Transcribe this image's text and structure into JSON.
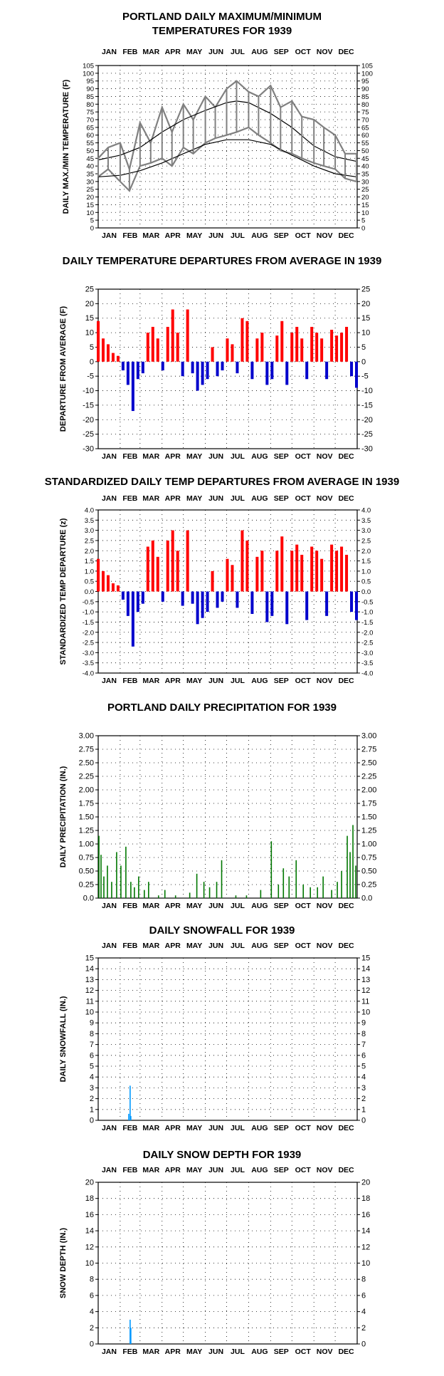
{
  "months": [
    "JAN",
    "FEB",
    "MAR",
    "APR",
    "MAY",
    "JUN",
    "JUL",
    "AUG",
    "SEP",
    "OCT",
    "NOV",
    "DEC"
  ],
  "colors": {
    "maxmin": "#808080",
    "normal": "#000000",
    "warm": "#ff0000",
    "cold": "#0000cc",
    "precip": "#007700",
    "snow": "#0099ff",
    "grid": "#000000"
  },
  "chart_data": [
    {
      "id": "temp",
      "type": "line",
      "title": [
        "PORTLAND DAILY MAXIMUM/MINIMUM",
        "TEMPERATURES FOR 1939"
      ],
      "ylabel": "DAILY MAX./MIN TEMPERATURE (F)",
      "ylim": [
        0,
        105
      ],
      "yticks": [
        "0",
        "5",
        "10",
        "15",
        "20",
        "25",
        "30",
        "35",
        "40",
        "45",
        "50",
        "55",
        "60",
        "65",
        "70",
        "75",
        "80",
        "85",
        "90",
        "95",
        "100",
        "105"
      ],
      "months_top": true,
      "months_bottom": true,
      "series": [
        {
          "role": "max_daily",
          "x": [
            1,
            15,
            32,
            45,
            60,
            75,
            91,
            105,
            121,
            135,
            152,
            166,
            182,
            196,
            213,
            227,
            244,
            258,
            274,
            288,
            305,
            319,
            335,
            349,
            365
          ],
          "y": [
            45,
            52,
            55,
            38,
            68,
            55,
            78,
            62,
            80,
            70,
            85,
            78,
            90,
            95,
            88,
            85,
            92,
            78,
            82,
            72,
            70,
            65,
            60,
            48,
            48
          ]
        },
        {
          "role": "min_daily",
          "x": [
            1,
            15,
            32,
            45,
            60,
            75,
            91,
            105,
            121,
            135,
            152,
            166,
            182,
            196,
            213,
            227,
            244,
            258,
            274,
            288,
            305,
            319,
            335,
            349,
            365
          ],
          "y": [
            33,
            38,
            30,
            24,
            40,
            42,
            45,
            40,
            52,
            48,
            55,
            58,
            60,
            62,
            65,
            60,
            55,
            50,
            48,
            45,
            42,
            40,
            38,
            32,
            30
          ]
        },
        {
          "role": "normal_max",
          "x": [
            1,
            32,
            60,
            91,
            121,
            152,
            182,
            196,
            213,
            244,
            274,
            305,
            335,
            365
          ],
          "y": [
            44,
            47,
            52,
            62,
            70,
            76,
            81,
            82,
            81,
            74,
            65,
            53,
            46,
            43
          ]
        },
        {
          "role": "normal_min",
          "x": [
            1,
            32,
            60,
            91,
            121,
            152,
            182,
            196,
            213,
            244,
            274,
            305,
            335,
            365
          ],
          "y": [
            33,
            34,
            37,
            42,
            48,
            54,
            57,
            57,
            57,
            54,
            47,
            40,
            35,
            33
          ]
        }
      ]
    },
    {
      "id": "dep",
      "type": "bar",
      "title": [
        "DAILY TEMPERATURE DEPARTURES FROM AVERAGE IN 1939"
      ],
      "ylabel": "DEPARTURE FROM AVERAGE (F)",
      "ylim": [
        -30,
        25
      ],
      "yticks": [
        "-30",
        "-25",
        "-20",
        "-15",
        "-10",
        "-5",
        "0",
        "5",
        "10",
        "15",
        "20",
        "25"
      ],
      "months_top": false,
      "months_bottom": true,
      "series": [
        {
          "role": "departure",
          "x": [
            1,
            8,
            15,
            22,
            29,
            36,
            43,
            50,
            57,
            64,
            71,
            78,
            85,
            92,
            99,
            106,
            113,
            120,
            127,
            134,
            141,
            148,
            155,
            162,
            169,
            176,
            183,
            190,
            197,
            204,
            211,
            218,
            225,
            232,
            239,
            246,
            253,
            260,
            267,
            274,
            281,
            288,
            295,
            302,
            309,
            316,
            323,
            330,
            337,
            344,
            351,
            358,
            365
          ],
          "y": [
            14,
            8,
            6,
            3,
            2,
            -3,
            -8,
            -17,
            -6,
            -4,
            10,
            12,
            8,
            -3,
            12,
            18,
            10,
            -5,
            18,
            -4,
            -10,
            -8,
            -6,
            5,
            -5,
            -3,
            8,
            6,
            -4,
            15,
            14,
            -6,
            8,
            10,
            -8,
            -6,
            9,
            14,
            -8,
            10,
            12,
            8,
            -6,
            12,
            10,
            8,
            -6,
            11,
            9,
            10,
            12,
            -5,
            -9
          ]
        }
      ]
    },
    {
      "id": "std",
      "type": "bar",
      "title": [
        "STANDARDIZED DAILY TEMP DEPARTURES FROM AVERAGE IN 1939"
      ],
      "ylabel": "STANDARDIZED TEMP DEPARTURE (z)",
      "ylim": [
        -4,
        4
      ],
      "yticks": [
        "-4.0",
        "-3.5",
        "-3.0",
        "-2.5",
        "-2.0",
        "-1.5",
        "-1.0",
        "-0.5",
        "0.0",
        "0.5",
        "1.0",
        "1.5",
        "2.0",
        "2.5",
        "3.0",
        "3.5",
        "4.0"
      ],
      "months_top": true,
      "months_bottom": true,
      "series": [
        {
          "role": "z_departure",
          "x": [
            1,
            8,
            15,
            22,
            29,
            36,
            43,
            50,
            57,
            64,
            71,
            78,
            85,
            92,
            99,
            106,
            113,
            120,
            127,
            134,
            141,
            148,
            155,
            162,
            169,
            176,
            183,
            190,
            197,
            204,
            211,
            218,
            225,
            232,
            239,
            246,
            253,
            260,
            267,
            274,
            281,
            288,
            295,
            302,
            309,
            316,
            323,
            330,
            337,
            344,
            351,
            358,
            365
          ],
          "y": [
            1.6,
            1.0,
            0.8,
            0.4,
            0.3,
            -0.4,
            -1.2,
            -2.7,
            -1.0,
            -0.6,
            2.2,
            2.5,
            1.7,
            -0.5,
            2.5,
            3.0,
            2.0,
            -0.7,
            3.0,
            -0.6,
            -1.6,
            -1.3,
            -1.0,
            1.0,
            -0.8,
            -0.5,
            1.6,
            1.3,
            -0.8,
            3.0,
            2.5,
            -1.1,
            1.7,
            2.0,
            -1.5,
            -1.2,
            2.0,
            2.7,
            -1.6,
            2.0,
            2.3,
            1.8,
            -1.4,
            2.2,
            2.0,
            1.6,
            -1.2,
            2.3,
            2.0,
            2.2,
            1.8,
            -1.0,
            -1.4
          ]
        }
      ]
    },
    {
      "id": "precip",
      "type": "bar",
      "title": [
        "PORTLAND DAILY PRECIPITATION FOR 1939"
      ],
      "ylabel": "DAILY PRECIPITATION (IN.)",
      "ylim": [
        0,
        3
      ],
      "yticks": [
        "0.0",
        "0.25",
        "0.50",
        "0.75",
        "1.00",
        "1.25",
        "1.50",
        "1.75",
        "2.00",
        "2.25",
        "2.50",
        "2.75",
        "3.00"
      ],
      "months_top": false,
      "months_bottom": true,
      "series": [
        {
          "role": "precip",
          "x": [
            2,
            5,
            9,
            14,
            20,
            27,
            33,
            40,
            47,
            52,
            58,
            66,
            72,
            86,
            95,
            110,
            130,
            140,
            150,
            158,
            168,
            175,
            195,
            210,
            230,
            245,
            255,
            262,
            270,
            280,
            290,
            300,
            310,
            318,
            330,
            338,
            344,
            352,
            356,
            360,
            364
          ],
          "y": [
            1.15,
            0.8,
            0.4,
            0.6,
            0.3,
            0.85,
            0.6,
            0.95,
            0.3,
            0.2,
            0.4,
            0.15,
            0.3,
            0.05,
            0.15,
            0.05,
            0.1,
            0.45,
            0.3,
            0.2,
            0.3,
            0.7,
            0.05,
            0.05,
            0.15,
            1.05,
            0.25,
            0.55,
            0.4,
            0.7,
            0.25,
            0.2,
            0.2,
            0.4,
            0.15,
            0.3,
            0.5,
            1.15,
            0.85,
            1.35,
            0.6
          ]
        }
      ]
    },
    {
      "id": "snowfall",
      "type": "bar",
      "title": [
        "DAILY SNOWFALL FOR 1939"
      ],
      "ylabel": "DAILY SNOWFALL (IN.)",
      "ylim": [
        0,
        15
      ],
      "yticks": [
        "0",
        "1",
        "2",
        "3",
        "4",
        "5",
        "6",
        "7",
        "8",
        "9",
        "10",
        "11",
        "12",
        "13",
        "14",
        "15"
      ],
      "months_top": true,
      "months_bottom": true,
      "series": [
        {
          "role": "snowfall",
          "x": [
            44,
            46,
            47
          ],
          "y": [
            0.6,
            3.2,
            0.4
          ]
        }
      ]
    },
    {
      "id": "snowdepth",
      "type": "bar",
      "title": [
        "DAILY SNOW DEPTH FOR 1939"
      ],
      "ylabel": "SNOW DEPTH (IN.)",
      "ylim": [
        0,
        20
      ],
      "yticks": [
        "0",
        "2",
        "4",
        "6",
        "8",
        "10",
        "12",
        "14",
        "16",
        "18",
        "20"
      ],
      "months_top": true,
      "months_bottom": true,
      "series": [
        {
          "role": "snowdepth",
          "x": [
            46,
            47
          ],
          "y": [
            3,
            2
          ]
        }
      ]
    }
  ]
}
